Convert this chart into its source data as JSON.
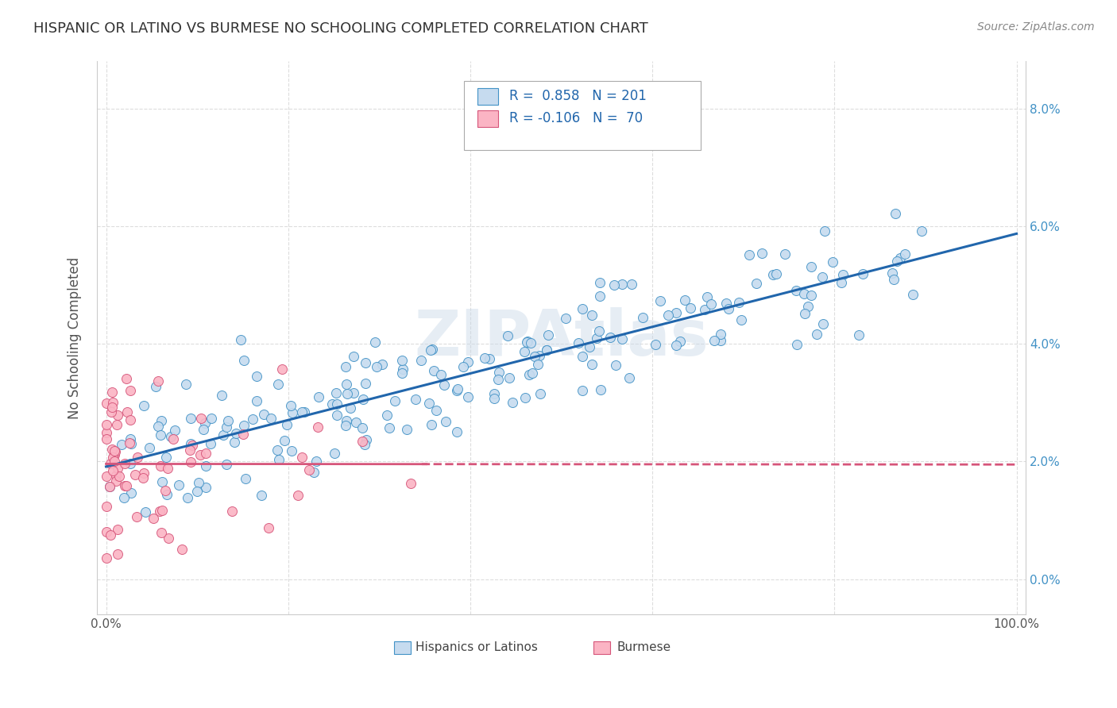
{
  "title": "HISPANIC OR LATINO VS BURMESE NO SCHOOLING COMPLETED CORRELATION CHART",
  "source": "Source: ZipAtlas.com",
  "ylabel": "No Schooling Completed",
  "xticks": [
    0.0,
    0.2,
    0.4,
    0.6,
    0.8,
    1.0
  ],
  "xticklabels": [
    "0.0%",
    "",
    "",
    "",
    "",
    "100.0%"
  ],
  "yticks": [
    0.0,
    0.02,
    0.04,
    0.06,
    0.08
  ],
  "yticklabels_right": [
    "0.0%",
    "2.0%",
    "4.0%",
    "6.0%",
    "8.0%"
  ],
  "blue_marker_face": "#c6dbef",
  "blue_marker_edge": "#4292c6",
  "pink_marker_face": "#fbb4c4",
  "pink_marker_edge": "#d6557a",
  "blue_line_color": "#2166ac",
  "pink_line_color": "#d6557a",
  "right_tick_color": "#4292c6",
  "R_blue": 0.858,
  "N_blue": 201,
  "R_pink": -0.106,
  "N_pink": 70,
  "legend_label_blue": "R =  0.858   N = 201",
  "legend_label_pink": "R = -0.106   N =  70",
  "bottom_label_blue": "Hispanics or Latinos",
  "bottom_label_pink": "Burmese",
  "watermark": "ZIPAtlas",
  "title_color": "#333333",
  "source_color": "#888888",
  "grid_color": "#dddddd",
  "legend_text_color": "#2166ac",
  "xlim": [
    -0.01,
    1.01
  ],
  "ylim": [
    -0.006,
    0.088
  ]
}
